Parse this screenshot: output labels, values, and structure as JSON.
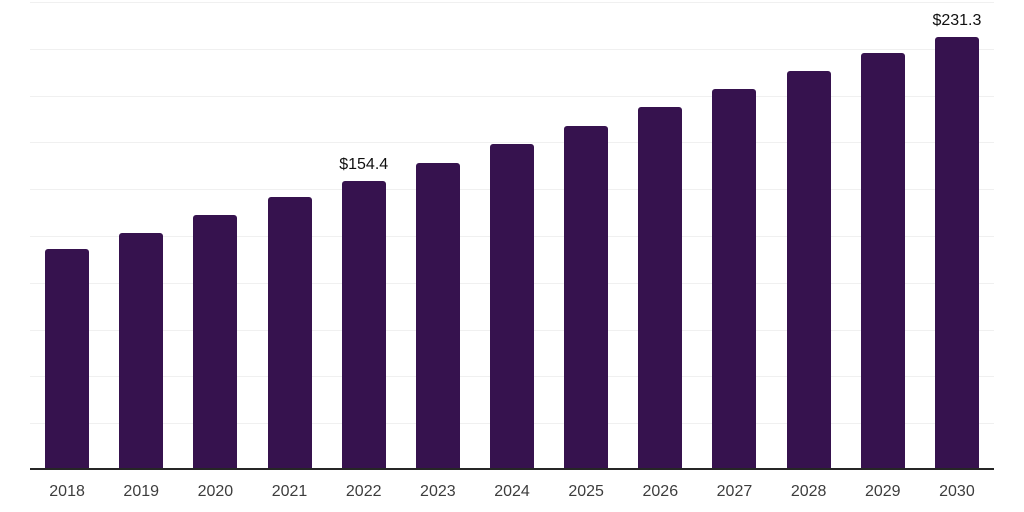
{
  "chart_data": {
    "type": "bar",
    "title": "",
    "xlabel": "",
    "ylabel": "",
    "categories": [
      "2018",
      "2019",
      "2020",
      "2021",
      "2022",
      "2023",
      "2024",
      "2025",
      "2026",
      "2027",
      "2028",
      "2029",
      "2030"
    ],
    "values": [
      117.9,
      126.8,
      136.1,
      145.7,
      154.4,
      164.2,
      174.0,
      183.9,
      193.8,
      203.5,
      213.3,
      222.9,
      231.3
    ],
    "data_labels": [
      "",
      "",
      "",
      "",
      "$154.4",
      "",
      "",
      "",
      "",
      "",
      "",
      "",
      "$231.3"
    ],
    "ylim": [
      0,
      250
    ],
    "gridline_step": 25,
    "grid": true,
    "legend": false,
    "y_tick_labels_visible": false
  },
  "styles": {
    "bar_color": "#36124e",
    "grid_color": "#f0f0f0",
    "axis_color": "#262626",
    "x_label_color": "#3d3d3d",
    "value_label_color": "#101010",
    "background": "#ffffff"
  }
}
